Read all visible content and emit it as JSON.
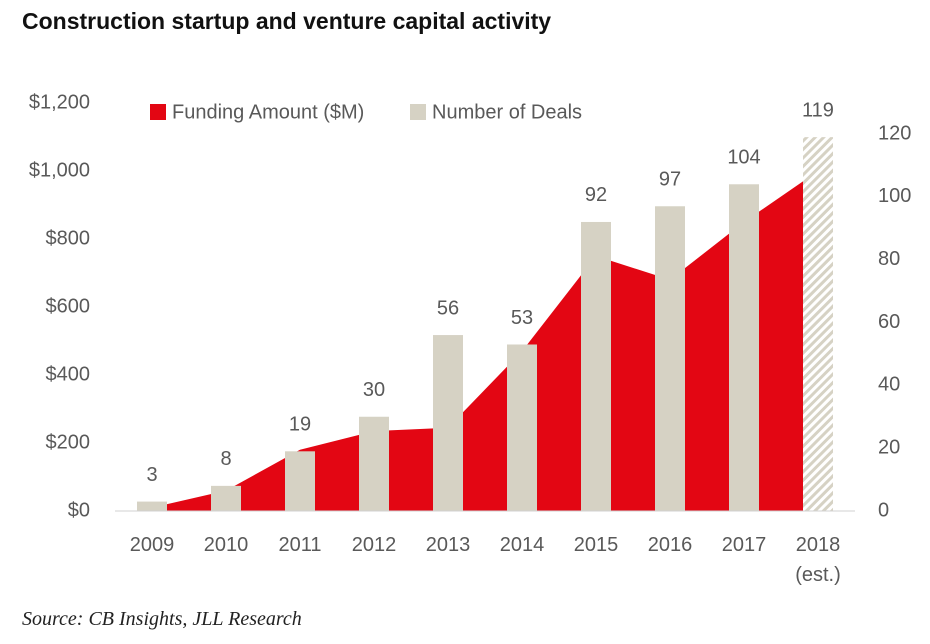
{
  "chart_data": {
    "type": "bar-area",
    "title": "Construction startup and venture capital activity",
    "source": "Source: CB Insights, JLL Research",
    "categories": [
      "2009",
      "2010",
      "2011",
      "2012",
      "2013",
      "2014",
      "2015",
      "2016",
      "2017",
      "2018\n(est.)"
    ],
    "series": [
      {
        "name": "Funding Amount ($M)",
        "color": "#e30613",
        "type": "area",
        "values": [
          10,
          60,
          180,
          235,
          245,
          470,
          750,
          680,
          850,
          1000
        ]
      },
      {
        "name": "Number of Deals",
        "color": "#d6d2c4",
        "type": "bar",
        "axis": "y2",
        "values": [
          3,
          8,
          19,
          30,
          56,
          53,
          92,
          97,
          104,
          119
        ],
        "hatched": [
          false,
          false,
          false,
          false,
          false,
          false,
          false,
          false,
          false,
          true
        ]
      }
    ],
    "ylim": [
      0,
      1200
    ],
    "yticks": [
      {
        "value": 0,
        "label": "$0"
      },
      {
        "value": 200,
        "label": "$200"
      },
      {
        "value": 400,
        "label": "$400"
      },
      {
        "value": 600,
        "label": "$600"
      },
      {
        "value": 800,
        "label": "$800"
      },
      {
        "value": 1000,
        "label": "$1,000"
      },
      {
        "value": 1200,
        "label": "$1,200"
      }
    ],
    "y2lim": [
      0,
      120
    ],
    "y2ticks": [
      0,
      20,
      40,
      60,
      80,
      100,
      120
    ]
  }
}
